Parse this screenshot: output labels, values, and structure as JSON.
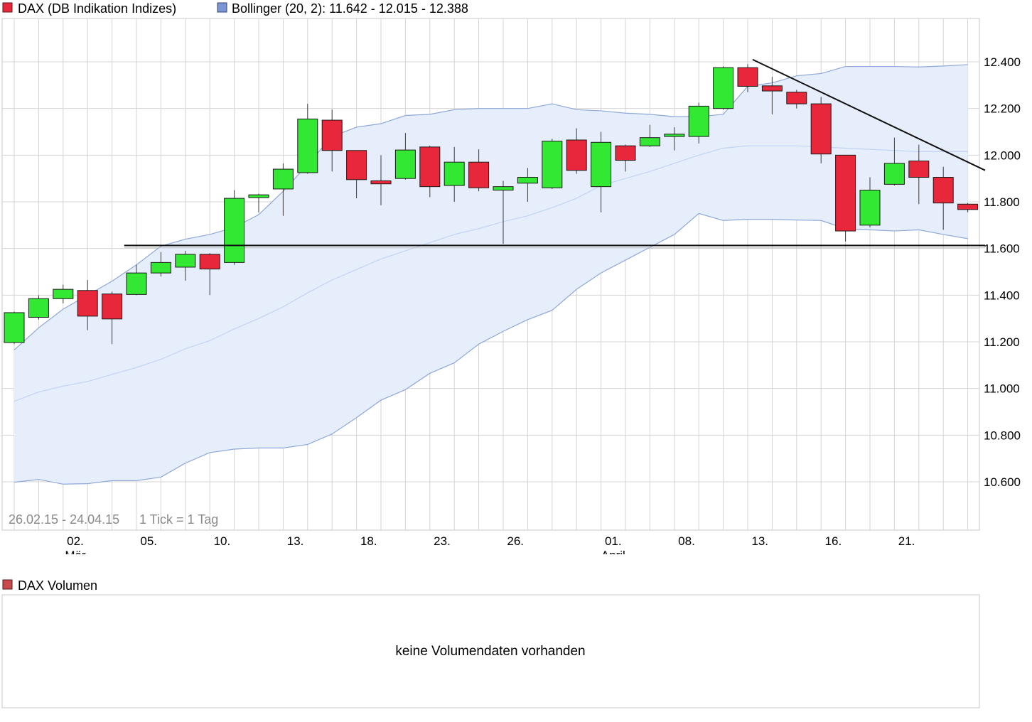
{
  "chart_data": {
    "type": "candlestick",
    "legend": [
      {
        "label": "DAX (DB Indikation Indizes)",
        "swatch_color": "#e8283a"
      },
      {
        "label": "Bollinger (20, 2): 11.642 - 12.015 - 12.388",
        "swatch_color": "#7a96d4"
      }
    ],
    "range_info": "26.02.15 - 24.04.15",
    "tick_info": "1 Tick = 1 Tag",
    "y_axis": {
      "min": 10420,
      "max": 12660,
      "ticks": [
        {
          "value": 10600,
          "label": "10.600"
        },
        {
          "value": 10800,
          "label": "10.800"
        },
        {
          "value": 11000,
          "label": "11.000"
        },
        {
          "value": 11200,
          "label": "11.200"
        },
        {
          "value": 11400,
          "label": "11.400"
        },
        {
          "value": 11600,
          "label": "11.600"
        },
        {
          "value": 11800,
          "label": "11.800"
        },
        {
          "value": 12000,
          "label": "12.000"
        },
        {
          "value": 12200,
          "label": "12.200"
        },
        {
          "value": 12400,
          "label": "12.400"
        }
      ]
    },
    "x_axis": {
      "ticks": [
        {
          "index": 2.5,
          "label": "02."
        },
        {
          "index": 5.5,
          "label": "05."
        },
        {
          "index": 8.5,
          "label": "10."
        },
        {
          "index": 11.5,
          "label": "13."
        },
        {
          "index": 14.5,
          "label": "18."
        },
        {
          "index": 17.5,
          "label": "23."
        },
        {
          "index": 20.5,
          "label": "26."
        },
        {
          "index": 24.5,
          "label": "01."
        },
        {
          "index": 27.5,
          "label": "08."
        },
        {
          "index": 30.5,
          "label": "13."
        },
        {
          "index": 33.5,
          "label": "16."
        },
        {
          "index": 36.5,
          "label": "21."
        }
      ],
      "month_labels": [
        {
          "index": 2.5,
          "label": "Mär"
        },
        {
          "index": 24.5,
          "label": "April"
        }
      ]
    },
    "candles": [
      {
        "o": 11197,
        "h": 11330,
        "l": 11190,
        "c": 11325
      },
      {
        "o": 11305,
        "h": 11400,
        "l": 11295,
        "c": 11385
      },
      {
        "o": 11385,
        "h": 11445,
        "l": 11365,
        "c": 11425
      },
      {
        "o": 11420,
        "h": 11465,
        "l": 11250,
        "c": 11310
      },
      {
        "o": 11405,
        "h": 11415,
        "l": 11190,
        "c": 11298
      },
      {
        "o": 11403,
        "h": 11530,
        "l": 11400,
        "c": 11495
      },
      {
        "o": 11495,
        "h": 11585,
        "l": 11480,
        "c": 11540
      },
      {
        "o": 11520,
        "h": 11590,
        "l": 11462,
        "c": 11575
      },
      {
        "o": 11575,
        "h": 11580,
        "l": 11400,
        "c": 11512
      },
      {
        "o": 11540,
        "h": 11850,
        "l": 11530,
        "c": 11815
      },
      {
        "o": 11818,
        "h": 11835,
        "l": 11755,
        "c": 11830
      },
      {
        "o": 11855,
        "h": 11965,
        "l": 11740,
        "c": 11940
      },
      {
        "o": 11925,
        "h": 12220,
        "l": 11920,
        "c": 12155
      },
      {
        "o": 12150,
        "h": 12195,
        "l": 11930,
        "c": 12020
      },
      {
        "o": 12020,
        "h": 12020,
        "l": 11815,
        "c": 11895
      },
      {
        "o": 11890,
        "h": 12000,
        "l": 11785,
        "c": 11877
      },
      {
        "o": 11900,
        "h": 12095,
        "l": 11895,
        "c": 12022
      },
      {
        "o": 12035,
        "h": 12040,
        "l": 11820,
        "c": 11865
      },
      {
        "o": 11870,
        "h": 12035,
        "l": 11800,
        "c": 11970
      },
      {
        "o": 11970,
        "h": 12025,
        "l": 11845,
        "c": 11860
      },
      {
        "o": 11850,
        "h": 11890,
        "l": 11620,
        "c": 11865
      },
      {
        "o": 11880,
        "h": 11945,
        "l": 11800,
        "c": 11905
      },
      {
        "o": 11860,
        "h": 12070,
        "l": 11855,
        "c": 12060
      },
      {
        "o": 12065,
        "h": 12115,
        "l": 11920,
        "c": 11935
      },
      {
        "o": 11865,
        "h": 12100,
        "l": 11755,
        "c": 12055
      },
      {
        "o": 12040,
        "h": 12045,
        "l": 11930,
        "c": 11978
      },
      {
        "o": 12040,
        "h": 12130,
        "l": 12035,
        "c": 12075
      },
      {
        "o": 12080,
        "h": 12120,
        "l": 12020,
        "c": 12090
      },
      {
        "o": 12080,
        "h": 12225,
        "l": 12050,
        "c": 12210
      },
      {
        "o": 12200,
        "h": 12380,
        "l": 12195,
        "c": 12375
      },
      {
        "o": 12375,
        "h": 12390,
        "l": 12270,
        "c": 12295
      },
      {
        "o": 12297,
        "h": 12335,
        "l": 12175,
        "c": 12275
      },
      {
        "o": 12270,
        "h": 12280,
        "l": 12200,
        "c": 12220
      },
      {
        "o": 12220,
        "h": 12250,
        "l": 11965,
        "c": 12005
      },
      {
        "o": 12000,
        "h": 12000,
        "l": 11630,
        "c": 11675
      },
      {
        "o": 11700,
        "h": 11905,
        "l": 11690,
        "c": 11850
      },
      {
        "o": 11875,
        "h": 12075,
        "l": 11870,
        "c": 11965
      },
      {
        "o": 11975,
        "h": 12045,
        "l": 11790,
        "c": 11905
      },
      {
        "o": 11905,
        "h": 11950,
        "l": 11680,
        "c": 11795
      },
      {
        "o": 11790,
        "h": 11795,
        "l": 11755,
        "c": 11767
      }
    ],
    "bollinger": {
      "upper": [
        10945,
        10985,
        11010,
        11030,
        11060,
        11090,
        11125,
        11170,
        11205,
        11255,
        11300,
        11350,
        11410,
        11465,
        11510,
        11555,
        11590,
        11625,
        11660,
        11685,
        11715,
        11740,
        11775,
        11815,
        11870,
        11900,
        11930,
        11965,
        12000,
        12030,
        12040,
        12040,
        12040,
        12035,
        12030,
        12025,
        12020,
        12015,
        12015,
        12015
      ],
      "upper_band": [
        11210,
        11270,
        11330,
        11385,
        11440,
        11520,
        11580,
        11620,
        11640,
        11660,
        11740,
        11840,
        11960,
        12075,
        12105,
        12115,
        12155,
        12165,
        12190,
        12185,
        12185,
        12185,
        12205,
        12180,
        12175,
        12165,
        12160,
        12150,
        12150,
        12170,
        12200,
        12205,
        12205,
        12205,
        12225,
        12225,
        12225,
        12225,
        12225,
        12230
      ],
      "ma20": [
        10945,
        10985,
        11010,
        11030,
        11060,
        11090,
        11125,
        11170,
        11205,
        11255,
        11300,
        11350,
        11410,
        11465,
        11510,
        11555,
        11590,
        11625,
        11660,
        11685,
        11715,
        11740,
        11775,
        11815,
        11870,
        11900,
        11930,
        11965,
        12000,
        12030,
        12040,
        12040,
        12040,
        12035,
        12030,
        12025,
        12020,
        12015,
        12015,
        12015
      ],
      "top": [
        11165,
        11260,
        11340,
        11400,
        11460,
        11530,
        11610,
        11640,
        11660,
        11690,
        11745,
        11845,
        11960,
        12080,
        12120,
        12135,
        12170,
        12175,
        12195,
        12200,
        12200,
        12200,
        12220,
        12195,
        12190,
        12180,
        12175,
        12165,
        12165,
        12175,
        12295,
        12310,
        12340,
        12350,
        12380,
        12380,
        12380,
        12378,
        12382,
        12388
      ],
      "bottom": [
        10598,
        10610,
        10590,
        10592,
        10605,
        10605,
        10620,
        10680,
        10725,
        10740,
        10745,
        10745,
        10760,
        10805,
        10875,
        10950,
        10995,
        11065,
        11110,
        11190,
        11245,
        11295,
        11335,
        11425,
        11495,
        11550,
        11605,
        11660,
        11750,
        11720,
        11725,
        11725,
        11722,
        11720,
        11685,
        11680,
        11675,
        11680,
        11660,
        11642
      ]
    },
    "trendlines": [
      {
        "name": "support",
        "from": {
          "index": 4.5,
          "value": 11613
        },
        "to": {
          "index": 40.0,
          "value": 11613
        }
      },
      {
        "name": "resistance",
        "from": {
          "index": 30.2,
          "value": 12410
        },
        "to": {
          "index": 40.0,
          "value": 11935
        }
      }
    ],
    "volume_panel": {
      "legend": {
        "label": "DAX Volumen",
        "swatch_color": "#c84a4a"
      },
      "message": "keine Volumendaten vorhanden"
    },
    "colors": {
      "up": "#33e833",
      "down": "#e8283a",
      "band_fill": "#e6eefc",
      "band_line": "#8fa8d8",
      "ma_line": "#c2d3f2",
      "grid": "#d4d4d4",
      "frame": "#c8c8c8"
    }
  }
}
